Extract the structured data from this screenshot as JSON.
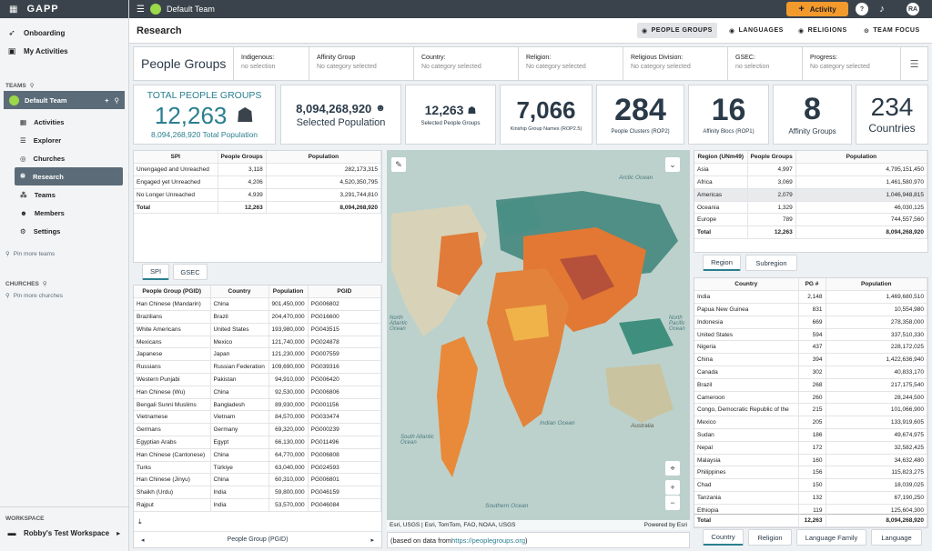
{
  "app": {
    "logo": "GAPP",
    "team": "Default Team",
    "activity": "Activity",
    "help": "?",
    "avatar": "RA"
  },
  "sidebar": {
    "onboarding": "Onboarding",
    "my_activities": "My Activities",
    "teams_label": "TEAMS",
    "team_name": "Default Team",
    "items": [
      "Activities",
      "Explorer",
      "Churches",
      "Research",
      "Teams",
      "Members",
      "Settings"
    ],
    "pin_teams": "Pin more teams",
    "churches_label": "CHURCHES",
    "pin_churches": "Pin more churches",
    "workspace_label": "WORKSPACE",
    "workspace": "Robby's Test Workspace"
  },
  "header": {
    "title": "Research",
    "nav": [
      "PEOPLE GROUPS",
      "LANGUAGES",
      "RELIGIONS",
      "TEAM FOCUS"
    ]
  },
  "filters": {
    "title": "People Groups",
    "cols": [
      {
        "label": "Indigenous:",
        "value": "no selection"
      },
      {
        "label": "Affinity Group",
        "value": "No category selected"
      },
      {
        "label": "Country:",
        "value": "No category selected"
      },
      {
        "label": "Religion:",
        "value": "No category selected"
      },
      {
        "label": "Religious Division:",
        "value": "No category selected"
      },
      {
        "label": "GSEC:",
        "value": "no selection"
      },
      {
        "label": "Progress:",
        "value": "No category selected"
      }
    ]
  },
  "cards": {
    "total_label": "TOTAL PEOPLE GROUPS",
    "total": "12,263",
    "total_pop": "8,094,268,920 Total Population",
    "sel_pop": "8,094,268,920",
    "sel_pop_label": "Selected Population",
    "sel_pg": "12,263",
    "sel_pg_label": "Selected People Groups",
    "kinship": "7,066",
    "kinship_label": "Kinship Group Names (ROP2.5)",
    "clusters": "284",
    "clusters_label": "People Clusters (ROP2)",
    "blocs": "16",
    "blocs_label": "Affinity Blocs (ROP1)",
    "affinity": "8",
    "affinity_label": "Affinity Groups",
    "countries": "234",
    "countries_label": "Countries"
  },
  "spi": {
    "headers": [
      "SPI",
      "People Groups",
      "Population"
    ],
    "rows": [
      [
        "Unengaged and Unreached",
        "3,118",
        "282,173,315"
      ],
      [
        "Engaged yet Unreached",
        "4,206",
        "4,520,350,795"
      ],
      [
        "No Longer Unreached",
        "4,939",
        "3,291,744,810"
      ],
      [
        "Total",
        "12,263",
        "8,094,268,920"
      ]
    ],
    "tabs": [
      "SPI",
      "GSEC"
    ]
  },
  "pg": {
    "headers": [
      "People Group (PGID)",
      "Country",
      "Population",
      "PGID"
    ],
    "rows": [
      [
        "Han Chinese (Mandarin)",
        "China",
        "901,450,000",
        "PG006802"
      ],
      [
        "Brazilians",
        "Brazil",
        "204,470,000",
        "PG016600"
      ],
      [
        "White Americans",
        "United States",
        "193,980,000",
        "PG043515"
      ],
      [
        "Mexicans",
        "Mexico",
        "121,740,000",
        "PG024878"
      ],
      [
        "Japanese",
        "Japan",
        "121,230,000",
        "PG007559"
      ],
      [
        "Russians",
        "Russian Federation",
        "109,690,000",
        "PG039316"
      ],
      [
        "Western Punjabi",
        "Pakistan",
        "94,910,000",
        "PG006420"
      ],
      [
        "Han Chinese (Wu)",
        "China",
        "92,530,000",
        "PG006806"
      ],
      [
        "Bengali Sunni Muslims",
        "Bangladesh",
        "89,930,000",
        "PG001156"
      ],
      [
        "Vietnamese",
        "Vietnam",
        "84,570,000",
        "PG033474"
      ],
      [
        "Germans",
        "Germany",
        "69,320,000",
        "PG000239"
      ],
      [
        "Egyptian Arabs",
        "Egypt",
        "66,130,000",
        "PG011496"
      ],
      [
        "Han Chinese (Cantonese)",
        "China",
        "64,770,000",
        "PG006808"
      ],
      [
        "Turks",
        "Türkiye",
        "63,040,000",
        "PG024593"
      ],
      [
        "Han Chinese (Jinyu)",
        "China",
        "60,310,000",
        "PG006801"
      ],
      [
        "Shaikh (Urdu)",
        "India",
        "59,800,000",
        "PG046159"
      ],
      [
        "Rajput",
        "India",
        "53,570,000",
        "PG046084"
      ]
    ],
    "footer": "People Group (PGID)"
  },
  "map": {
    "labels": [
      "Arctic Ocean",
      "North Atlantic Ocean",
      "Indian Ocean",
      "South Atlantic Ocean",
      "North Pacific Ocean",
      "Australia",
      "Southern Ocean"
    ],
    "attrib": "Esri, USGS | Esri, TomTom, FAO, NOAA, USGS",
    "powered": "Powered by Esri",
    "source_prefix": "(based on data from ",
    "source_link": "https://peoplegroups.org",
    "source_suffix": ")"
  },
  "region": {
    "headers": [
      "Region (UNm49)",
      "People Groups",
      "Population"
    ],
    "rows": [
      [
        "Asia",
        "4,997",
        "4,795,151,450"
      ],
      [
        "Africa",
        "3,069",
        "1,461,580,970"
      ],
      [
        "Americas",
        "2,079",
        "1,046,948,815"
      ],
      [
        "Oceania",
        "1,329",
        "46,030,125"
      ],
      [
        "Europe",
        "789",
        "744,557,560"
      ],
      [
        "Total",
        "12,263",
        "8,094,268,920"
      ]
    ],
    "tabs": [
      "Region",
      "Subregion"
    ]
  },
  "country": {
    "headers": [
      "Country",
      "PG #",
      "Population"
    ],
    "rows": [
      [
        "India",
        "2,148",
        "1,469,680,510"
      ],
      [
        "Papua New Guinea",
        "831",
        "10,554,980"
      ],
      [
        "Indonesia",
        "669",
        "278,358,000"
      ],
      [
        "United States",
        "594",
        "337,510,330"
      ],
      [
        "Nigeria",
        "437",
        "228,172,025"
      ],
      [
        "China",
        "394",
        "1,422,636,940"
      ],
      [
        "Canada",
        "302",
        "40,833,170"
      ],
      [
        "Brazil",
        "268",
        "217,175,540"
      ],
      [
        "Cameroon",
        "260",
        "28,244,500"
      ],
      [
        "Congo, Democratic Republic of the",
        "215",
        "101,066,900"
      ],
      [
        "Mexico",
        "205",
        "133,919,605"
      ],
      [
        "Sudan",
        "186",
        "49,674,975"
      ],
      [
        "Nepal",
        "172",
        "32,582,425"
      ],
      [
        "Malaysia",
        "160",
        "34,632,480"
      ],
      [
        "Philippines",
        "156",
        "115,823,275"
      ],
      [
        "Chad",
        "150",
        "18,039,025"
      ],
      [
        "Tanzania",
        "132",
        "67,190,250"
      ],
      [
        "Ethiopia",
        "119",
        "125,604,300"
      ]
    ],
    "total": [
      "Total",
      "12,263",
      "8,094,268,920"
    ],
    "tabs": [
      "Country",
      "Religion",
      "Language Family",
      "Language"
    ]
  }
}
